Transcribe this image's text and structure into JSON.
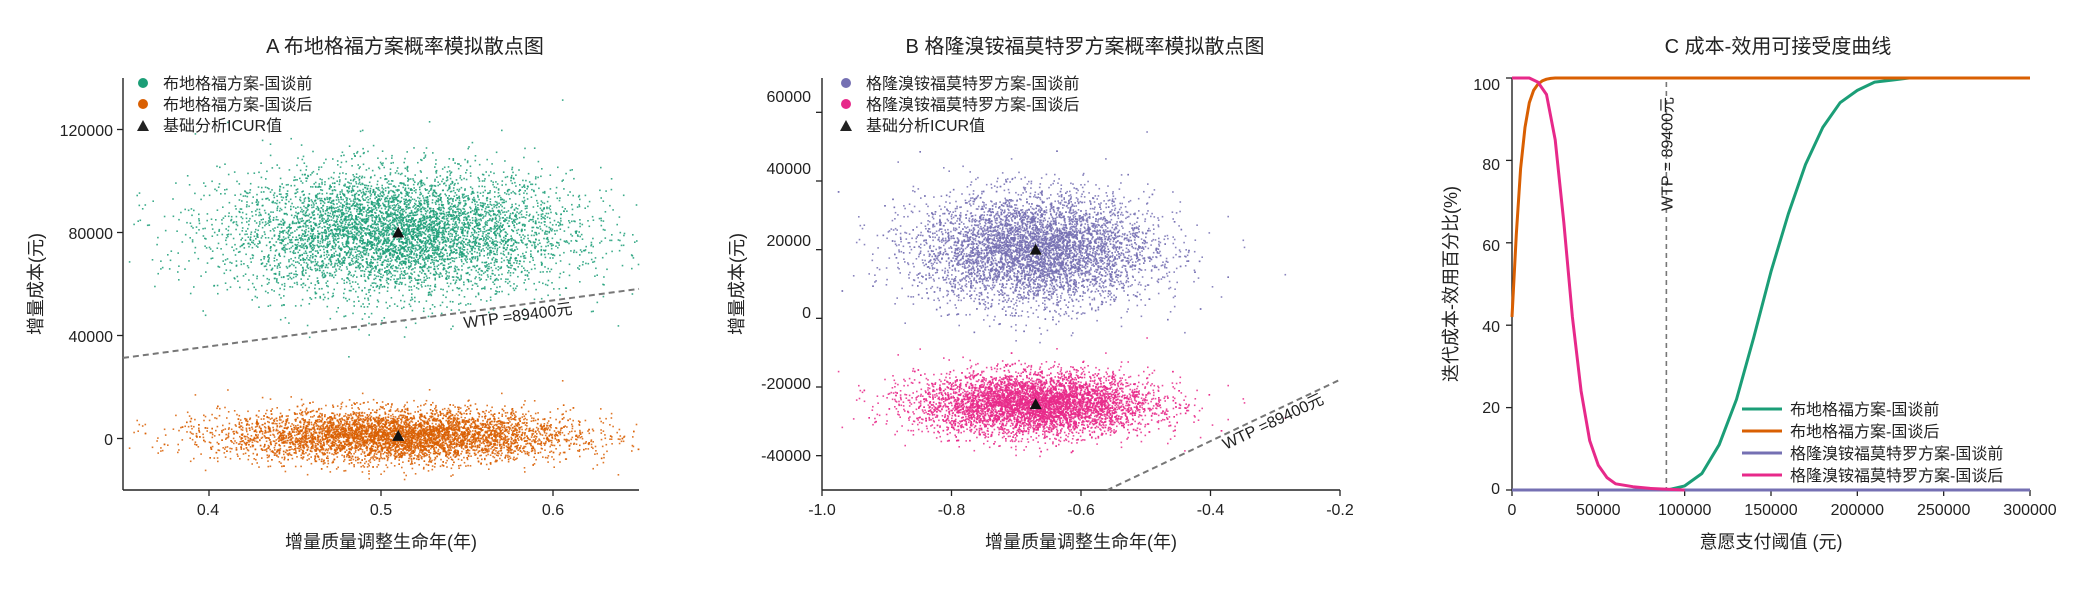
{
  "chart_data": [
    {
      "type": "scatter",
      "title": "A 布地格福方案概率模拟散点图",
      "xlabel": "增量质量调整生命年(年)",
      "ylabel": "增量成本(元)",
      "xlim": [
        0.35,
        0.65
      ],
      "ylim": [
        -20000,
        140000
      ],
      "xticks": [
        0.4,
        0.5,
        0.6
      ],
      "yticks": [
        0,
        40000,
        80000,
        120000
      ],
      "x_tick_labels": [
        "0.4",
        "0.5",
        "0.6"
      ],
      "y_tick_labels": [
        "0",
        "40000",
        "80000",
        "120000"
      ],
      "legend_position": "top-left",
      "series": [
        {
          "name": "布地格福方案-国谈前",
          "color": "#1b9e77",
          "x_mean": 0.51,
          "x_sd": 0.05,
          "y_mean": 80000,
          "y_sd": 12000,
          "n": 6000
        },
        {
          "name": "布地格福方案-国谈后",
          "color": "#d95f02",
          "x_mean": 0.51,
          "x_sd": 0.05,
          "y_mean": 1000,
          "y_sd": 5000,
          "n": 6000
        }
      ],
      "base_case": {
        "label": "基础分析ICUR值",
        "points": [
          [
            0.51,
            80000
          ],
          [
            0.51,
            1000
          ]
        ]
      },
      "wtp_line": {
        "label": "WTP =89400元",
        "slope": 89400
      }
    },
    {
      "type": "scatter",
      "title": "B 格隆溴铵福莫特罗方案概率模拟散点图",
      "xlabel": "增量质量调整生命年(年)",
      "ylabel": "增量成本(元)",
      "xlim": [
        -1.0,
        -0.2
      ],
      "ylim": [
        -50000,
        70000
      ],
      "xticks": [
        -1.0,
        -0.8,
        -0.6,
        -0.4,
        -0.2
      ],
      "yticks": [
        -40000,
        -20000,
        0,
        20000,
        40000,
        60000
      ],
      "x_tick_labels": [
        "-1.0",
        "-0.8",
        "-0.6",
        "-0.4",
        "-0.2"
      ],
      "y_tick_labels": [
        "-40000",
        "-20000",
        "0",
        "20000",
        "40000",
        "60000"
      ],
      "legend_position": "top-left",
      "series": [
        {
          "name": "格隆溴铵福莫特罗方案-国谈前",
          "color": "#7570b3",
          "x_mean": -0.67,
          "x_sd": 0.09,
          "y_mean": 20000,
          "y_sd": 8000,
          "n": 6000
        },
        {
          "name": "格隆溴铵福莫特罗方案-国谈后",
          "color": "#e7298a",
          "x_mean": -0.67,
          "x_sd": 0.09,
          "y_mean": -25000,
          "y_sd": 4500,
          "n": 6000
        }
      ],
      "base_case": {
        "label": "基础分析ICUR值",
        "points": [
          [
            -0.67,
            20000
          ],
          [
            -0.67,
            -25000
          ]
        ]
      },
      "wtp_line": {
        "label": "WTP =89400元",
        "slope": 89400
      }
    },
    {
      "type": "line",
      "title": "C 成本-效用可接受度曲线",
      "xlabel": "意愿支付阈值 (元)",
      "ylabel": "迭代成本-效用百分比(%)",
      "xlim": [
        0,
        300000
      ],
      "ylim": [
        0,
        100
      ],
      "xticks": [
        0,
        50000,
        100000,
        150000,
        200000,
        250000,
        300000
      ],
      "yticks": [
        0,
        20,
        40,
        60,
        80,
        100
      ],
      "x_tick_labels": [
        "0",
        "50000",
        "100000",
        "150000",
        "200000",
        "250000",
        "300000"
      ],
      "y_tick_labels": [
        "0",
        "20",
        "40",
        "60",
        "80",
        "100"
      ],
      "legend_position": "bottom-right",
      "vline": {
        "x": 89400,
        "label": "WTP = 89400元"
      },
      "series": [
        {
          "name": "布地格福方案-国谈前",
          "color": "#1b9e77",
          "x": [
            0,
            90000,
            100000,
            110000,
            120000,
            130000,
            140000,
            150000,
            160000,
            170000,
            180000,
            190000,
            200000,
            210000,
            220000,
            230000,
            250000,
            300000
          ],
          "y": [
            0,
            0,
            1,
            4,
            11,
            22,
            37,
            53,
            67,
            79,
            88,
            94,
            97,
            99,
            99.5,
            100,
            100,
            100
          ]
        },
        {
          "name": "布地格福方案-国谈后",
          "color": "#d95f02",
          "x": [
            0,
            2500,
            5000,
            7500,
            10000,
            12500,
            15000,
            17500,
            20000,
            22500,
            25000,
            30000,
            300000
          ],
          "y": [
            42,
            62,
            78,
            88,
            94,
            97,
            98.5,
            99.3,
            99.7,
            99.9,
            100,
            100,
            100
          ]
        },
        {
          "name": "格隆溴铵福莫特罗方案-国谈前",
          "color": "#7570b3",
          "x": [
            0,
            300000
          ],
          "y": [
            0,
            0
          ]
        },
        {
          "name": "格隆溴铵福莫特罗方案-国谈后",
          "color": "#e7298a",
          "x": [
            0,
            10000,
            15000,
            20000,
            25000,
            30000,
            35000,
            40000,
            45000,
            50000,
            55000,
            60000,
            70000,
            80000,
            90000,
            100000
          ],
          "y": [
            100,
            100,
            99,
            96,
            85,
            65,
            42,
            24,
            12,
            6,
            3,
            1.5,
            0.8,
            0.4,
            0.2,
            0
          ]
        }
      ]
    }
  ]
}
